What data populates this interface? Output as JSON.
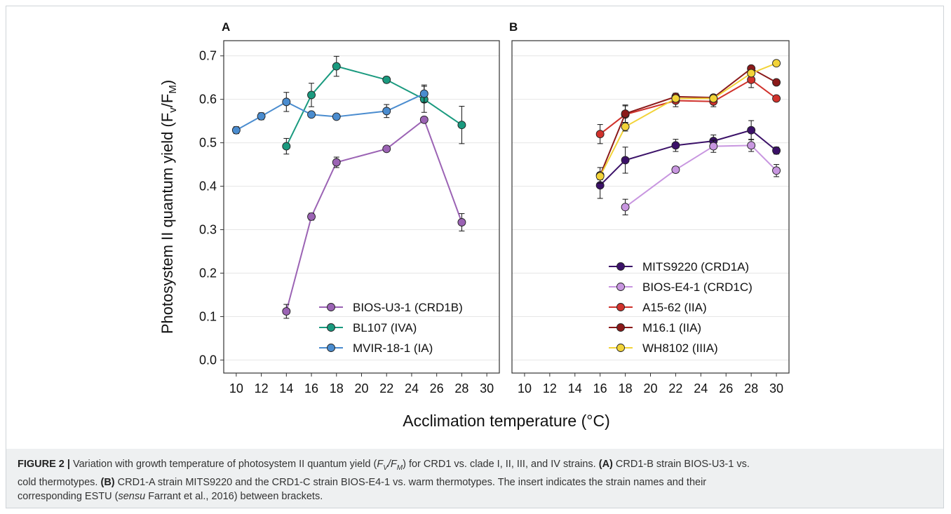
{
  "figure": {
    "caption_label": "FIGURE 2 |",
    "caption_lines": [
      "Variation with growth temperature of photosystem II quantum yield (",
      "cold thermotypes.",
      "corresponding ESTU ("
    ],
    "caption_parts": {
      "l1a": "Variation with growth temperature of photosystem II quantum yield (",
      "l1b": "F",
      "l1c": "V",
      "l1d": "/",
      "l1e": "F",
      "l1f": "M",
      "l1g": ") for CRD1 vs. clade I, II, III, and IV strains.",
      "l1h": "(A)",
      "l1i": "CRD1-B strain BIOS-U3-1 vs.",
      "l2a": "cold thermotypes.",
      "l2b": "(B)",
      "l2c": "CRD1-A strain MITS9220 and the CRD1-C strain BIOS-E4-1 vs. warm thermotypes. The insert indicates the strain names and their",
      "l3a": "corresponding ESTU (",
      "l3b": "sensu",
      "l3c": "Farrant et al., 2016) between brackets."
    }
  },
  "chart_data": [
    {
      "type": "line",
      "panel_label": "A",
      "ylabel": "Photosystem II quantum yield (Fv/FM)",
      "xlabel": "Acclimation temperature (°C)",
      "xlim": [
        9,
        31
      ],
      "ylim": [
        -0.03,
        0.735
      ],
      "xticks": [
        10,
        12,
        14,
        16,
        18,
        20,
        22,
        24,
        26,
        28,
        30
      ],
      "yticks": [
        0.0,
        0.1,
        0.2,
        0.3,
        0.4,
        0.5,
        0.6,
        0.7
      ],
      "ytick_labels": [
        "0.0",
        "0.1",
        "0.2",
        "0.3",
        "0.4",
        "0.5",
        "0.6",
        "0.7"
      ],
      "grid": true,
      "legend_position": "bottom-right",
      "series": [
        {
          "name": "BIOS-U3-1 (CRD1B)",
          "color": "#9b63b4",
          "x": [
            14,
            16,
            18,
            22,
            25,
            28
          ],
          "y": [
            0.112,
            0.33,
            0.455,
            0.486,
            0.553,
            0.317
          ],
          "err": [
            0.016,
            0.008,
            0.012,
            0.006,
            0.006,
            0.02
          ]
        },
        {
          "name": "BL107 (IVA)",
          "color": "#1a9a7f",
          "x": [
            14,
            16,
            18,
            22,
            25,
            28
          ],
          "y": [
            0.492,
            0.61,
            0.676,
            0.645,
            0.6,
            0.541
          ],
          "err": [
            0.018,
            0.027,
            0.023,
            0.007,
            0.03,
            0.043
          ]
        },
        {
          "name": "MVIR-18-1 (IA)",
          "color": "#4a8ccf",
          "x": [
            10,
            12,
            14,
            16,
            18,
            22,
            25
          ],
          "y": [
            0.529,
            0.561,
            0.594,
            0.565,
            0.56,
            0.573,
            0.613
          ],
          "err": [
            0.008,
            0.008,
            0.022,
            0.006,
            0.004,
            0.015,
            0.02
          ]
        }
      ]
    },
    {
      "type": "line",
      "panel_label": "B",
      "xlabel": "Acclimation temperature (°C)",
      "xlim": [
        9,
        31
      ],
      "ylim": [
        -0.03,
        0.735
      ],
      "xticks": [
        10,
        12,
        14,
        16,
        18,
        20,
        22,
        24,
        26,
        28,
        30
      ],
      "grid": true,
      "legend_position": "bottom-right",
      "series": [
        {
          "name": "MITS9220 (CRD1A)",
          "color": "#3b1168",
          "x": [
            16,
            18,
            22,
            25,
            28,
            30
          ],
          "y": [
            0.402,
            0.46,
            0.494,
            0.504,
            0.529,
            0.482
          ],
          "err": [
            0.03,
            0.03,
            0.014,
            0.014,
            0.022,
            0.008
          ]
        },
        {
          "name": "BIOS-E4-1 (CRD1C)",
          "color": "#c896e0",
          "x": [
            18,
            22,
            25,
            28,
            30
          ],
          "y": [
            0.352,
            0.438,
            0.492,
            0.494,
            0.436
          ],
          "err": [
            0.018,
            0.007,
            0.014,
            0.014,
            0.014
          ]
        },
        {
          "name": "A15-62 (IIA)",
          "color": "#d0322c",
          "x": [
            16,
            18,
            22,
            25,
            28,
            30
          ],
          "y": [
            0.52,
            0.565,
            0.597,
            0.595,
            0.645,
            0.602
          ],
          "err": [
            0.022,
            0.02,
            0.014,
            0.012,
            0.018,
            0.004
          ]
        },
        {
          "name": "M16.1 (IIA)",
          "color": "#8b1a1a",
          "x": [
            16,
            18,
            22,
            25,
            28,
            30
          ],
          "y": [
            0.425,
            0.567,
            0.606,
            0.604,
            0.671,
            0.639
          ],
          "err": [
            0.018,
            0.02,
            0.008,
            0.006,
            0.004,
            0.006
          ]
        },
        {
          "name": "WH8102 (IIIA)",
          "color": "#f2d338",
          "x": [
            16,
            18,
            22,
            25,
            28,
            30
          ],
          "y": [
            0.423,
            0.537,
            0.602,
            0.602,
            0.66,
            0.683
          ],
          "err": [
            0.008,
            0.01,
            0.008,
            0.008,
            0.006,
            0.004
          ]
        }
      ]
    }
  ]
}
